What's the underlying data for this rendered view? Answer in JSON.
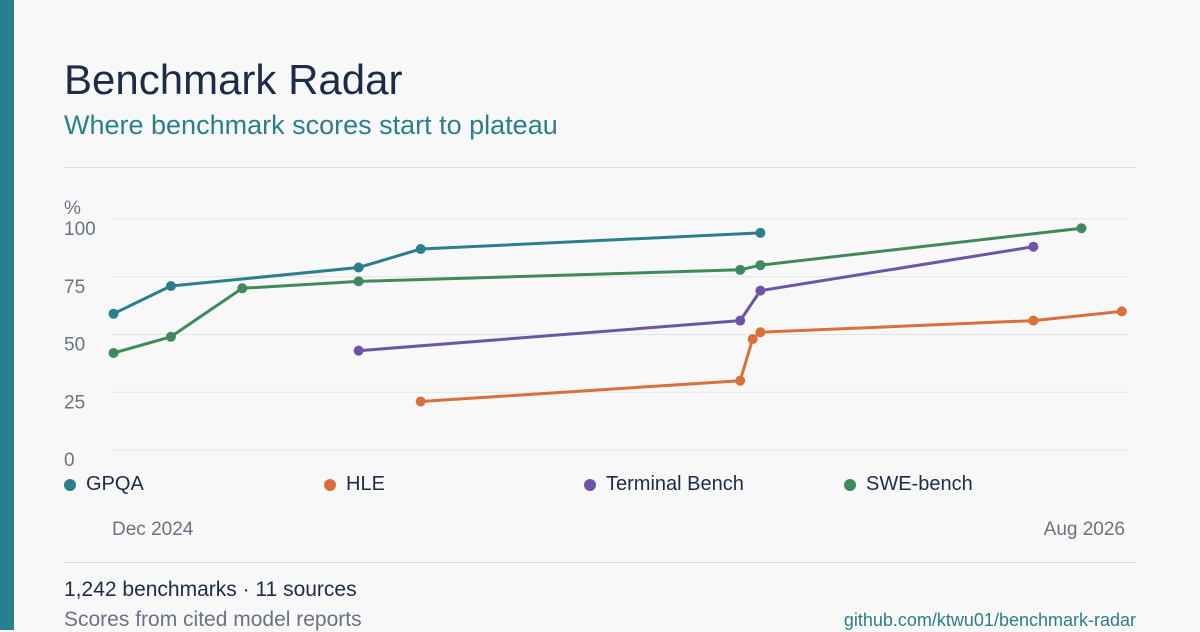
{
  "header": {
    "title": "Benchmark Radar",
    "subtitle": "Where benchmark scores start to plateau"
  },
  "footer": {
    "stat_line": "1,242 benchmarks · 11 sources",
    "source_note": "Scores from cited model reports",
    "repo_link": "github.com/ktwu01/benchmark-radar"
  },
  "colors": {
    "accent": "#2a7f8c",
    "title": "#1d2b4a"
  },
  "chart_data": {
    "type": "line",
    "ylabel": "%",
    "ylim": [
      0,
      100
    ],
    "yticks": [
      0,
      25,
      50,
      75,
      100
    ],
    "x_tick_labels": [
      {
        "x": "2024-12",
        "label": "Dec 2024"
      },
      {
        "x": "2026-08",
        "label": "Aug 2026"
      }
    ],
    "xlim": [
      "2024-11-23",
      "2026-09-09"
    ],
    "grid": true,
    "legend_placement": "below-plot",
    "series": [
      {
        "name": "GPQA",
        "color": "#2a7f8c",
        "points": [
          [
            "2024-11-24",
            59
          ],
          [
            "2024-12-31",
            71
          ],
          [
            "2025-05-01",
            79
          ],
          [
            "2025-06-10",
            87
          ],
          [
            "2026-01-15",
            94
          ]
        ]
      },
      {
        "name": "HLE",
        "color": "#d96f3a",
        "points": [
          [
            "2025-06-10",
            21
          ],
          [
            "2026-01-02",
            30
          ],
          [
            "2026-01-10",
            48
          ],
          [
            "2026-01-15",
            51
          ],
          [
            "2026-07-10",
            56
          ],
          [
            "2026-09-05",
            60
          ]
        ]
      },
      {
        "name": "Terminal Bench",
        "color": "#6e54a8",
        "points": [
          [
            "2025-05-01",
            43
          ],
          [
            "2026-01-02",
            56
          ],
          [
            "2026-01-15",
            69
          ],
          [
            "2026-07-10",
            88
          ]
        ]
      },
      {
        "name": "SWE-bench",
        "color": "#3e8a5c",
        "points": [
          [
            "2024-11-24",
            42
          ],
          [
            "2024-12-31",
            49
          ],
          [
            "2025-02-15",
            70
          ],
          [
            "2025-05-01",
            73
          ],
          [
            "2026-01-02",
            78
          ],
          [
            "2026-01-15",
            80
          ],
          [
            "2026-08-10",
            96
          ]
        ]
      }
    ]
  }
}
